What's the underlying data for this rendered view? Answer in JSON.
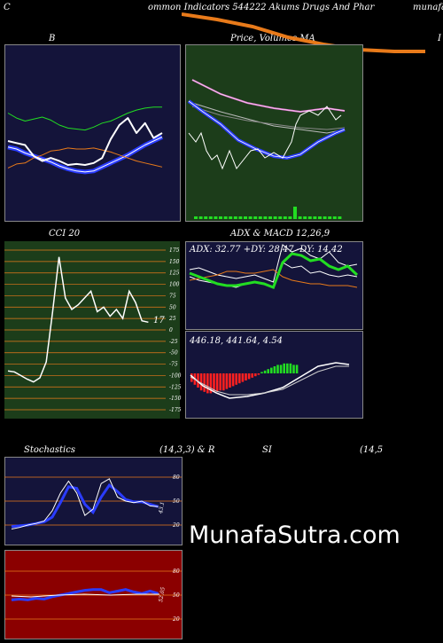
{
  "header": {
    "left": "C",
    "title": "ommon  Indicators 544222  Akums Drugs And Phar",
    "right": "munafa"
  },
  "panels": {
    "bollinger": {
      "label": "B"
    },
    "price_ma": {
      "label": "Price,  Volumes  MA",
      "right": "I"
    },
    "cci": {
      "label": "CCI 20",
      "value": "17",
      "ticks": [
        "175",
        "150",
        "125",
        "100",
        "75",
        "50",
        "25",
        "0",
        "-25",
        "-50",
        "-75",
        "-100",
        "-125",
        "-150",
        "-175"
      ]
    },
    "adx_macd": {
      "label": "ADX  & MACD 12,26,9",
      "adx_text": "ADX: 32.77  +DY: 28.47 -DY: 14.42",
      "macd_text": "446.18,  441.64,  4.54"
    },
    "stochastics": {
      "label_left": "Stochastics",
      "label_mid": "(14,3,3) & R",
      "label_si": "SI",
      "label_right": "(14,5",
      "value": "43.1",
      "ticks": [
        "80",
        "50",
        "20"
      ]
    },
    "rsi": {
      "value": "52.05",
      "ticks": [
        "80",
        "50",
        "20"
      ]
    }
  },
  "watermark": "MunafaSutra.com",
  "colors": {
    "green_bg": "#1c3d1a",
    "navy_bg": "#14143a",
    "red_bg": "#8b0000",
    "orange": "#e87a1a",
    "blue": "#2a3cff",
    "lime": "#22dd22"
  },
  "chart_data": [
    {
      "type": "line",
      "title": "B",
      "series": [
        {
          "values": [
            100,
            95,
            92,
            94,
            96,
            93,
            88,
            85,
            84,
            83,
            86,
            90,
            92,
            96,
            100,
            103,
            105,
            106,
            106
          ]
        },
        {
          "values": [
            66,
            64,
            60,
            57,
            54,
            51,
            47,
            44,
            42,
            41,
            42,
            46,
            50,
            54,
            58,
            63,
            68,
            72,
            76
          ]
        },
        {
          "values": [
            45,
            49,
            50,
            55,
            58,
            62,
            63,
            65,
            64,
            64,
            65,
            63,
            61,
            58,
            55,
            52,
            50,
            48,
            46
          ]
        },
        {
          "values": [
            58,
            56,
            52,
            47,
            42,
            38,
            35,
            32,
            30,
            29,
            29,
            31,
            33,
            36,
            40,
            44,
            47,
            50,
            52
          ]
        },
        {
          "values": [
            72,
            70,
            68,
            57,
            52,
            55,
            52,
            48,
            49,
            48,
            50,
            55,
            74,
            88,
            95,
            80,
            90,
            75,
            80
          ]
        }
      ]
    },
    {
      "type": "line",
      "title": "Price,  Volumes  MA",
      "series": [
        {
          "values": [
            60,
            50,
            40,
            30,
            20,
            12,
            8,
            6,
            4,
            3
          ]
        },
        {
          "values": [
            40,
            38,
            34,
            30,
            26,
            22,
            20,
            18,
            16,
            15
          ]
        },
        {
          "values": [
            70,
            55,
            35,
            20,
            18,
            14,
            12,
            10,
            9,
            8
          ]
        },
        {
          "values": [
            42,
            40,
            42,
            35,
            30,
            26,
            24,
            18,
            12,
            8
          ]
        },
        {
          "values": [
            30,
            28,
            24,
            20,
            18,
            22,
            32,
            40,
            44,
            46
          ]
        }
      ]
    },
    {
      "type": "line",
      "title": "CCI 20",
      "ylim": [
        -175,
        175
      ],
      "series": [
        {
          "values": [
            -90,
            -92,
            -100,
            -108,
            -114,
            -105,
            -70,
            40,
            160,
            70,
            45,
            55,
            70,
            85,
            40,
            50,
            30,
            45,
            25,
            85,
            60,
            20,
            17
          ]
        }
      ]
    },
    {
      "type": "line",
      "title": "ADX  & MACD 12,26,9",
      "series": [
        {
          "name": "ADX",
          "values": [
            34,
            32,
            30,
            28,
            27,
            27,
            28,
            29,
            28,
            26,
            40,
            45,
            44,
            41,
            42,
            38,
            36,
            38,
            33
          ]
        },
        {
          "name": "+DY",
          "values": [
            22,
            24,
            26,
            27,
            26,
            25,
            24,
            23,
            22,
            20,
            30,
            34,
            33,
            31,
            30,
            29,
            28,
            29,
            28
          ]
        },
        {
          "name": "-DY",
          "values": [
            18,
            19,
            20,
            21,
            23,
            23,
            22,
            22,
            23,
            24,
            20,
            18,
            17,
            16,
            16,
            15,
            15,
            15,
            14
          ]
        }
      ]
    },
    {
      "type": "line",
      "title": "Stochastics (14,3,3)",
      "ylim": [
        0,
        100
      ],
      "series": [
        {
          "values": [
            15,
            17,
            20,
            22,
            25,
            38,
            60,
            75,
            60,
            32,
            40,
            72,
            78,
            55,
            50,
            48,
            50,
            44,
            43
          ]
        },
        {
          "values": [
            18,
            19,
            20,
            22,
            24,
            30,
            48,
            68,
            66,
            46,
            36,
            55,
            70,
            62,
            52,
            49,
            49,
            46,
            43
          ]
        }
      ]
    },
    {
      "type": "line",
      "title": "RSI (14)",
      "ylim": [
        0,
        100
      ],
      "series": [
        {
          "values": [
            44,
            45,
            44,
            46,
            45,
            48,
            50,
            52,
            54,
            56,
            57,
            57,
            53,
            55,
            57,
            54,
            52,
            55,
            52
          ]
        }
      ]
    }
  ]
}
